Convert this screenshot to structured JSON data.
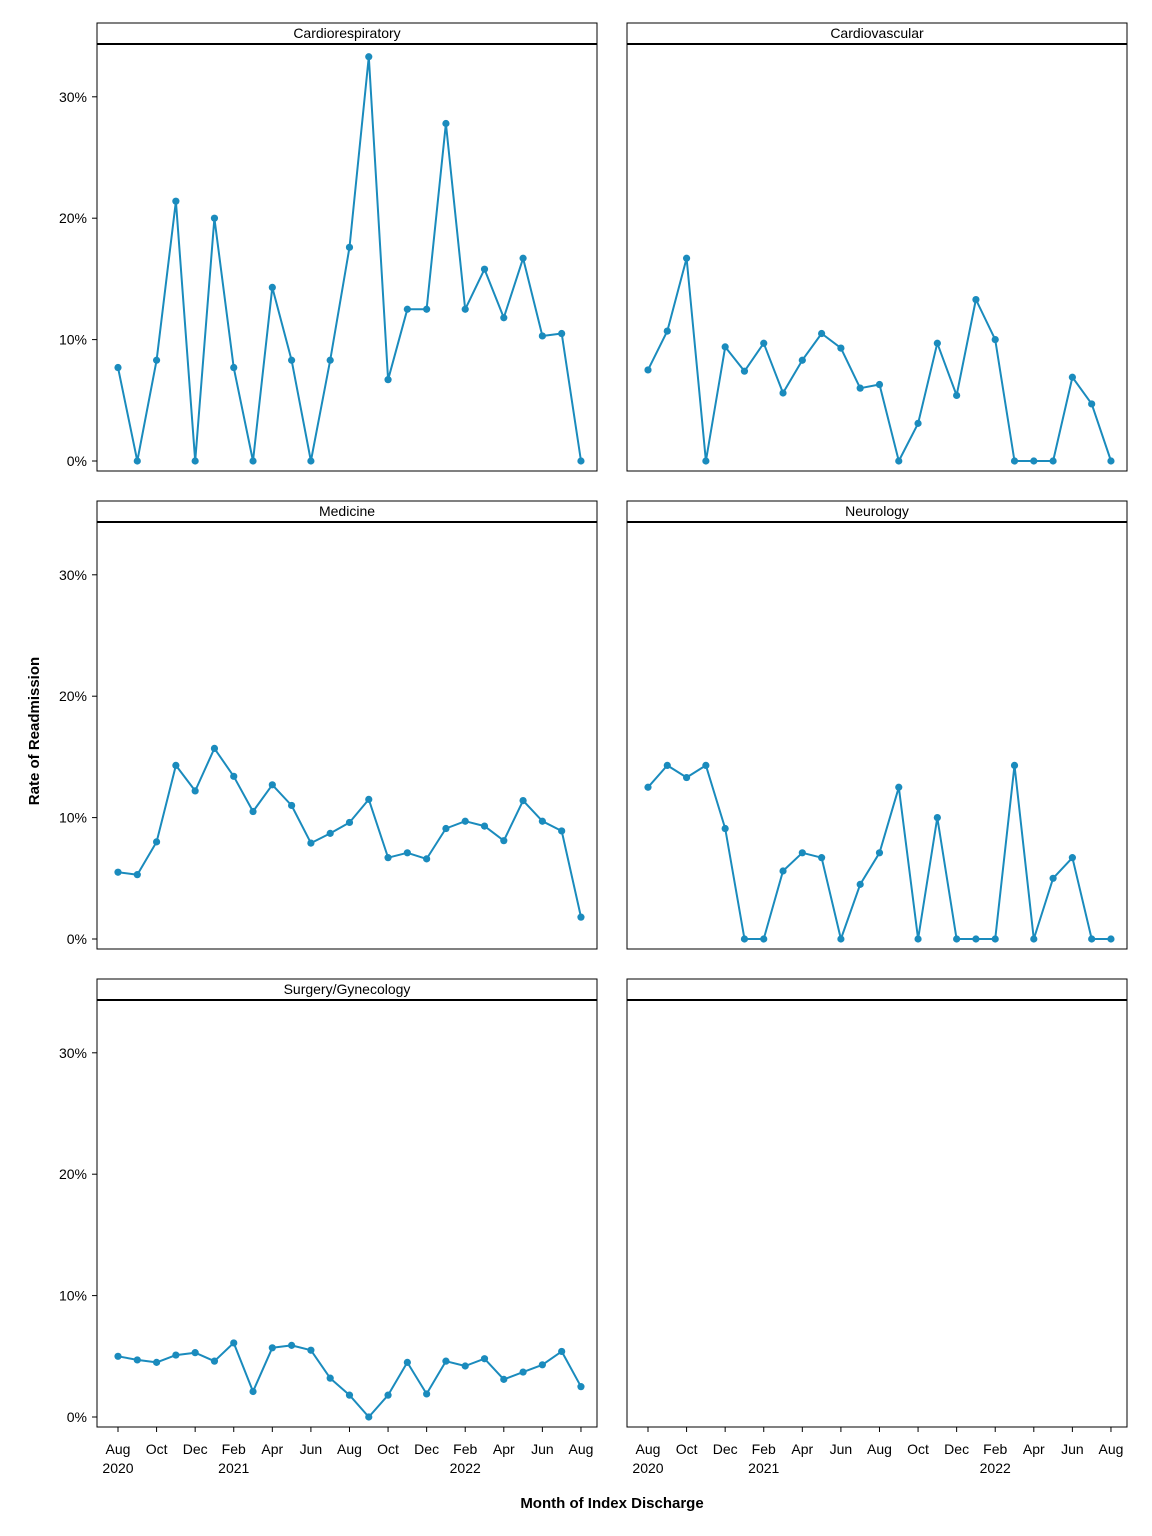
{
  "chart_data": {
    "type": "line",
    "xlabel": "Month of Index Discharge",
    "ylabel": "Rate of Readmission",
    "ylim": [
      0,
      35
    ],
    "y_ticks": [
      0,
      10,
      20,
      30
    ],
    "y_tick_labels": [
      "0%",
      "10%",
      "20%",
      "30%"
    ],
    "x": [
      "2020-08",
      "2020-09",
      "2020-10",
      "2020-11",
      "2020-12",
      "2021-01",
      "2021-02",
      "2021-03",
      "2021-04",
      "2021-05",
      "2021-06",
      "2021-07",
      "2021-08",
      "2021-09",
      "2021-10",
      "2021-11",
      "2021-12",
      "2022-01",
      "2022-02",
      "2022-03",
      "2022-04",
      "2022-05",
      "2022-06",
      "2022-07",
      "2022-08"
    ],
    "x_ticks": [
      {
        "x": "2020-08",
        "label": "Aug",
        "year": "2020"
      },
      {
        "x": "2020-10",
        "label": "Oct",
        "year": ""
      },
      {
        "x": "2020-12",
        "label": "Dec",
        "year": ""
      },
      {
        "x": "2021-02",
        "label": "Feb",
        "year": "2021"
      },
      {
        "x": "2021-04",
        "label": "Apr",
        "year": ""
      },
      {
        "x": "2021-06",
        "label": "Jun",
        "year": ""
      },
      {
        "x": "2021-08",
        "label": "Aug",
        "year": ""
      },
      {
        "x": "2021-10",
        "label": "Oct",
        "year": ""
      },
      {
        "x": "2021-12",
        "label": "Dec",
        "year": ""
      },
      {
        "x": "2022-02",
        "label": "Feb",
        "year": "2022"
      },
      {
        "x": "2022-04",
        "label": "Apr",
        "year": ""
      },
      {
        "x": "2022-06",
        "label": "Jun",
        "year": ""
      },
      {
        "x": "2022-08",
        "label": "Aug",
        "year": ""
      }
    ],
    "line_color": "#1a8bbd",
    "panels": [
      {
        "title": "Cardiorespiratory",
        "values": [
          7.7,
          0,
          8.3,
          21.4,
          0,
          20,
          7.7,
          0,
          14.3,
          8.3,
          0,
          8.3,
          17.6,
          33.3,
          6.7,
          12.5,
          12.5,
          27.8,
          12.5,
          15.8,
          11.8,
          16.7,
          10.3,
          10.5,
          0
        ]
      },
      {
        "title": "Cardiovascular",
        "values": [
          7.5,
          10.7,
          16.7,
          0,
          9.4,
          7.4,
          9.7,
          5.6,
          8.3,
          10.5,
          9.3,
          6.0,
          6.3,
          0,
          3.1,
          9.7,
          5.4,
          13.3,
          10,
          0,
          0,
          0,
          6.9,
          4.7,
          0
        ]
      },
      {
        "title": "Medicine",
        "values": [
          5.5,
          5.3,
          8.0,
          14.3,
          12.2,
          15.7,
          13.4,
          10.5,
          12.7,
          11.0,
          7.9,
          8.7,
          9.6,
          11.5,
          6.7,
          7.1,
          6.6,
          9.1,
          9.7,
          9.3,
          8.1,
          11.4,
          9.7,
          8.9,
          1.8
        ]
      },
      {
        "title": "Neurology",
        "values": [
          12.5,
          14.3,
          13.3,
          14.3,
          9.1,
          0,
          0,
          5.6,
          7.1,
          6.7,
          0,
          4.5,
          7.1,
          12.5,
          0,
          10,
          0,
          0,
          0,
          14.3,
          0,
          5,
          6.7,
          0,
          0
        ]
      },
      {
        "title": "Surgery/Gynecology",
        "values": [
          5.0,
          4.7,
          4.5,
          5.1,
          5.3,
          4.6,
          6.1,
          2.1,
          5.7,
          5.9,
          5.5,
          3.2,
          1.8,
          0,
          1.8,
          4.5,
          1.9,
          4.6,
          4.2,
          4.8,
          3.1,
          3.7,
          4.3,
          5.4,
          2.5
        ]
      },
      {
        "title": "",
        "values": []
      }
    ]
  }
}
